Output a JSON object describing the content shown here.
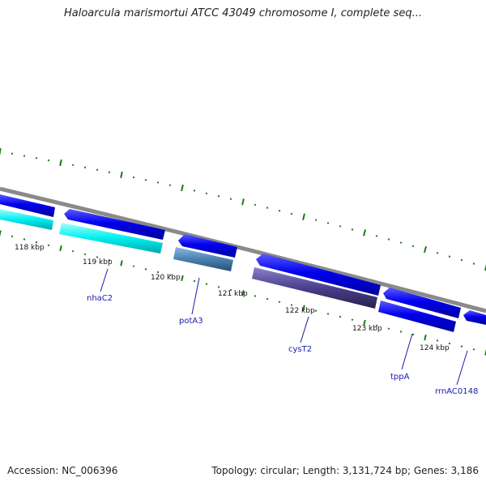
{
  "title": "Haloarcula marismortui ATCC 43049 chromosome I, complete seq...",
  "footer": {
    "accession": "Accession: NC_006396",
    "summary": "Topology: circular; Length: 3,131,724 bp; Genes: 3,186"
  },
  "scale": {
    "ticks": [
      "118 kbp",
      "119 kbp",
      "120 kbp",
      "121 kbp",
      "122 kbp",
      "123 kbp",
      "124 kbp"
    ]
  },
  "genes": [
    {
      "name": "nhaC2"
    },
    {
      "name": "potA3"
    },
    {
      "name": "cysT2"
    },
    {
      "name": "tppA"
    },
    {
      "name": "rrnAC0148"
    }
  ],
  "colors": {
    "backbone": "#8a8a8a",
    "forward_strand": "#0000ee",
    "cyan_gene": "#00e8ee",
    "steel_gene": "#4a80b0",
    "purple_gene": "#4a3f8c",
    "tick_marks": "#1a7a1a",
    "label_text": "#1a1aa8"
  }
}
